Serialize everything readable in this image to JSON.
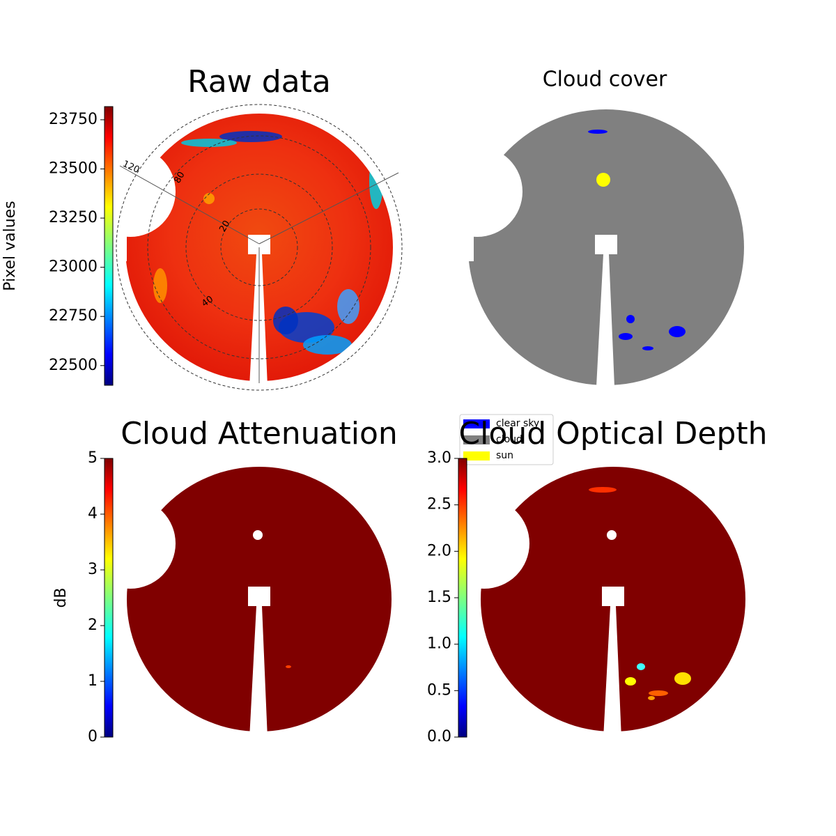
{
  "chart_data": [
    {
      "type": "image",
      "title": "Raw data",
      "ylabel": "Pixel values",
      "colormap": "jet",
      "ylim": [
        22400,
        23817
      ],
      "yticks": [
        22500,
        22750,
        23000,
        23250,
        23500,
        23750
      ],
      "annotations": [
        "120",
        "80",
        "20",
        "40"
      ]
    },
    {
      "type": "image",
      "title": "Cloud cover",
      "color": "#808080",
      "legend": [
        {
          "label": "clear sky",
          "color": "#0000ff"
        },
        {
          "label": "cloud",
          "color": "#808080"
        },
        {
          "label": "sun",
          "color": "#ffff00"
        }
      ]
    },
    {
      "type": "image",
      "title": "Cloud Attenuation",
      "ylabel": "dB",
      "colormap": "jet",
      "color": "#800000",
      "ylim": [
        0,
        5
      ],
      "yticks": [
        0,
        1,
        2,
        3,
        4,
        5
      ]
    },
    {
      "type": "image",
      "title": "Cloud Optical Depth",
      "colormap": "jet",
      "color": "#800000",
      "ylim": [
        0,
        3
      ],
      "yticks": [
        {
          "value": 0,
          "label": "0.0"
        },
        0.5,
        {
          "value": 1,
          "label": "1.0"
        },
        1.5,
        {
          "value": 2,
          "label": "2.0"
        },
        2.5,
        {
          "value": 3,
          "label": "3.0"
        }
      ]
    }
  ]
}
